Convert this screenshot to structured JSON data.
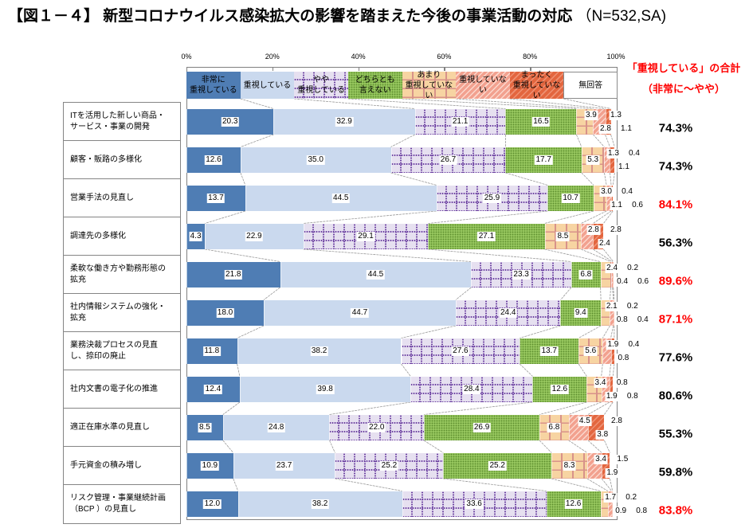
{
  "title": {
    "main": "【図１－４】 新型コロナウイルス感染拡大の影響を踏まえた今後の事業活動の対応",
    "suffix": " （N=532,SA)"
  },
  "summary_header": {
    "line1": "「重視している」の合計",
    "line2": "（非常に～やや）",
    "color": "#ff0000"
  },
  "chart_data": {
    "type": "bar",
    "orientation": "horizontal",
    "stacked": true,
    "title": "新型コロナウイルス感染拡大の影響を踏まえた今後の事業活動の対応",
    "figure_number": "図１－４",
    "sample": "N=532,SA",
    "xlabel": "",
    "ylabel": "",
    "xlim": [
      0,
      100
    ],
    "x_ticks": [
      "0%",
      "20%",
      "40%",
      "60%",
      "80%",
      "100%"
    ],
    "grid": false,
    "legend_position": "top",
    "categories": [
      "ITを活用した新しい商品・\nサービス・事業の開発",
      "顧客・販路の多様化",
      "営業手法の見直し",
      "調達先の多様化",
      "柔軟な働き方や勤務形態の\n拡充",
      "社内情報システムの強化・\n拡充",
      "業務決裁プロセスの見直\nし、捺印の廃止",
      "社内文書の電子化の推進",
      "適正在庫水準の見直し",
      "手元資金の積み増し",
      "リスク管理・事業継続計画\n（BCP ）の見直し"
    ],
    "series": [
      {
        "name": "非常に重視している",
        "legend_label": "非常に\n重視している",
        "color": "#4f7db4",
        "values": [
          20.3,
          12.6,
          13.7,
          4.3,
          21.8,
          18.0,
          11.8,
          12.4,
          8.5,
          10.9,
          12.0
        ]
      },
      {
        "name": "重視している",
        "legend_label": "重視している",
        "color": "#cad9ee",
        "values": [
          32.9,
          35.0,
          44.5,
          22.9,
          44.5,
          44.7,
          38.2,
          39.8,
          24.8,
          23.7,
          38.2
        ]
      },
      {
        "name": "やや重視している",
        "legend_label": "やや\n重視している",
        "color": "#e6e0f0",
        "values": [
          21.1,
          26.7,
          25.9,
          29.1,
          23.3,
          24.4,
          27.6,
          28.4,
          22.0,
          25.2,
          33.6
        ]
      },
      {
        "name": "どちらとも言えない",
        "legend_label": "どちらとも\n言えない",
        "color": "#96c65e",
        "values": [
          16.5,
          17.7,
          10.7,
          27.1,
          6.8,
          9.4,
          13.7,
          12.6,
          26.9,
          25.2,
          12.6
        ]
      },
      {
        "name": "あまり重視していない",
        "legend_label": "あまり\n重視していない",
        "color": "#f7d4a2",
        "values": [
          3.9,
          5.3,
          3.0,
          8.5,
          2.4,
          2.1,
          5.6,
          3.4,
          6.8,
          8.3,
          1.7
        ]
      },
      {
        "name": "重視していない",
        "legend_label": "重視していない",
        "color": "#f2a18f",
        "values": [
          2.8,
          1.3,
          1.1,
          2.8,
          0.4,
          0.8,
          1.9,
          1.9,
          4.5,
          3.4,
          0.9
        ]
      },
      {
        "name": "まったく重視していない",
        "legend_label": "まったく\n重視していない",
        "color": "#e3663f",
        "values": [
          1.3,
          1.1,
          0.4,
          2.4,
          0.2,
          0.2,
          0.8,
          0.8,
          3.8,
          1.9,
          0.2
        ]
      },
      {
        "name": "無回答",
        "legend_label": "無回答",
        "color": "#ffffff",
        "values": [
          1.1,
          0.4,
          0.6,
          2.8,
          0.6,
          0.4,
          0.4,
          0.8,
          2.8,
          1.5,
          0.8
        ]
      }
    ],
    "totals": {
      "label": "「重視している」の合計（非常に～やや）",
      "values": [
        "74.3%",
        "74.3%",
        "84.1%",
        "56.3%",
        "89.6%",
        "87.1%",
        "77.6%",
        "80.6%",
        "55.3%",
        "59.8%",
        "83.8%"
      ],
      "colors": [
        "#000000",
        "#000000",
        "#ff0000",
        "#000000",
        "#ff0000",
        "#ff0000",
        "#000000",
        "#000000",
        "#000000",
        "#000000",
        "#ff0000"
      ]
    }
  }
}
